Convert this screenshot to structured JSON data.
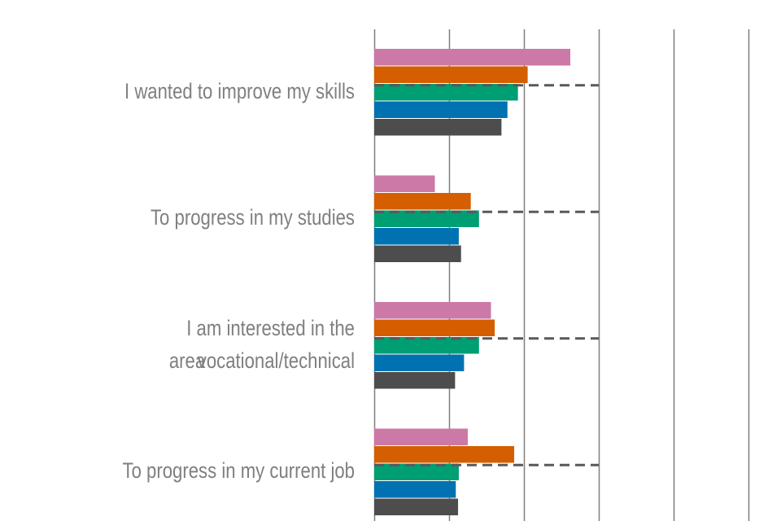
{
  "chart_data": {
    "type": "bar",
    "orientation": "horizontal",
    "categories": [
      "I wanted to improve my skills",
      "To progress in my studies",
      "I am interested in the vocational/technical area",
      "To progress in my current job"
    ],
    "category_lines": [
      [
        "I wanted to improve my skills"
      ],
      [
        "To progress in my studies"
      ],
      [
        "I am interested in the vocational/technical",
        "area"
      ],
      [
        "To progress in my current job"
      ]
    ],
    "series": [
      {
        "color": "#cc79a7",
        "values": [
          26.2,
          8.1,
          15.6,
          12.5
        ]
      },
      {
        "color": "#d55e00",
        "values": [
          20.5,
          12.9,
          16.1,
          18.7
        ]
      },
      {
        "color": "#009e73",
        "values": [
          19.2,
          14.0,
          14.0,
          11.3
        ]
      },
      {
        "color": "#0072b2",
        "values": [
          17.8,
          11.3,
          12.0,
          10.9
        ]
      },
      {
        "color": "#4d4d4d",
        "values": [
          17.0,
          11.6,
          10.8,
          11.2
        ]
      }
    ],
    "reference_values": [
      30,
      30,
      30,
      30
    ],
    "xlim": [
      0,
      50
    ],
    "grid_step": 10,
    "grid": true,
    "legend": "none"
  }
}
